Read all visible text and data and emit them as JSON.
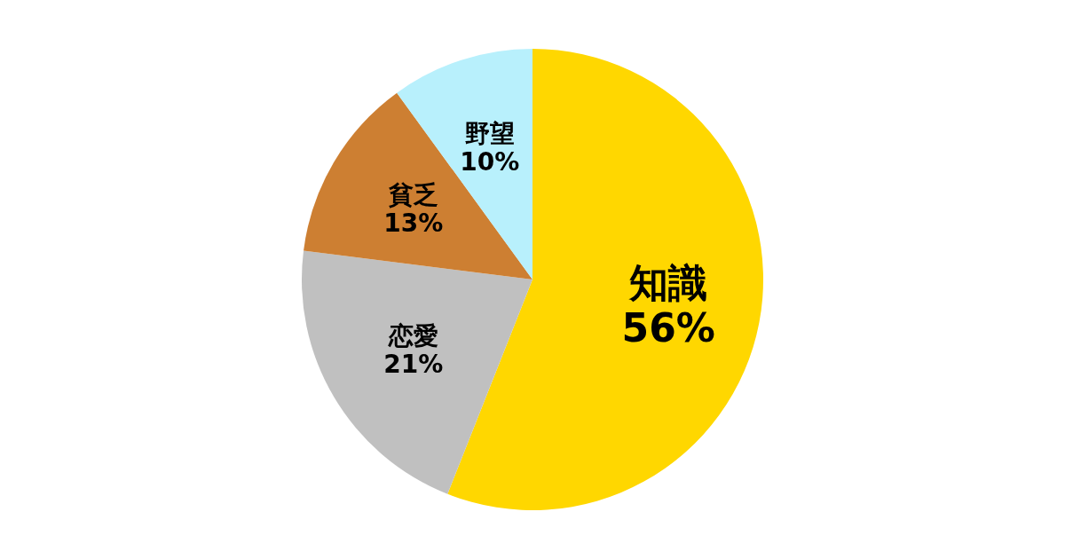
{
  "chart_data": {
    "type": "pie",
    "categories": [
      "知識",
      "恋愛",
      "貧乏",
      "野望"
    ],
    "values": [
      56,
      21,
      13,
      10
    ],
    "colors": [
      "#ffd700",
      "#c0c0c0",
      "#cd7f32",
      "#b8f0fc"
    ],
    "value_labels": [
      "56%",
      "21%",
      "13%",
      "10%"
    ]
  }
}
